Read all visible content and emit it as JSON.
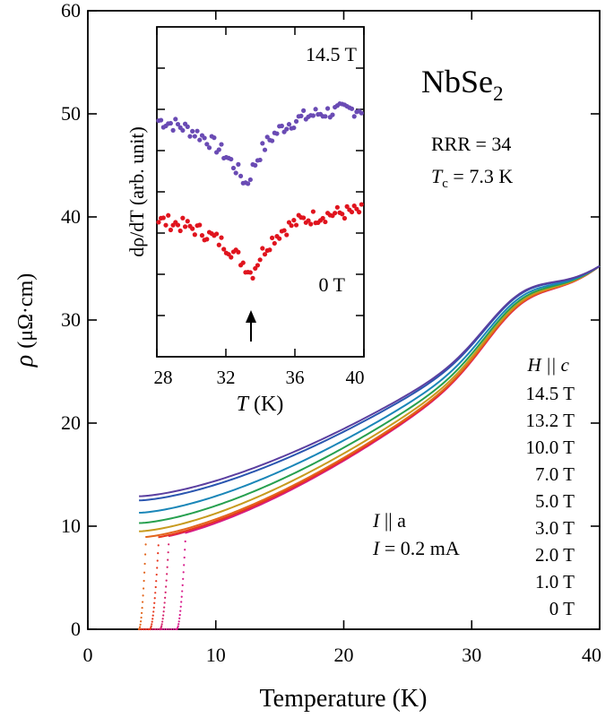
{
  "chart_data": [
    {
      "type": "line",
      "role": "main",
      "xlabel": "Temperature (K)",
      "ylabel_symbol": "ρ",
      "ylabel_unit": "(μΩ·cm)",
      "xlim": [
        0,
        40
      ],
      "ylim": [
        0,
        60
      ],
      "xticks": [
        0,
        10,
        20,
        30,
        40
      ],
      "yticks": [
        0,
        10,
        20,
        30,
        40,
        50,
        60
      ],
      "x_tick_labels": [
        "0",
        "10",
        "20",
        "30",
        "40"
      ],
      "y_tick_labels": [
        "0",
        "10",
        "20",
        "30",
        "40",
        "50",
        "60"
      ],
      "legend_title": "H || c",
      "legend_position": "right",
      "series": [
        {
          "name": "14.5 T",
          "color": "#5b3fa0",
          "tc": 0,
          "y0": 12.9
        },
        {
          "name": "13.2 T",
          "color": "#2a56b0",
          "tc": 0,
          "y0": 12.5
        },
        {
          "name": "10.0 T",
          "color": "#1a86b8",
          "tc": 0,
          "y0": 11.3
        },
        {
          "name": "7.0 T",
          "color": "#27a04f",
          "tc": 0,
          "y0": 10.3
        },
        {
          "name": "5.0 T",
          "color": "#c79a1e",
          "tc": 0,
          "y0": 9.5
        },
        {
          "name": "3.0 T",
          "color": "#e2651b",
          "tc": 4.2,
          "y0": 8.9
        },
        {
          "name": "2.0 T",
          "color": "#e8361c",
          "tc": 5.2,
          "y0": 8.7
        },
        {
          "name": "1.0 T",
          "color": "#d6226e",
          "tc": 6.0,
          "y0": 8.6
        },
        {
          "name": "0 T",
          "color": "#d81b8c",
          "tc": 7.3,
          "y0": 8.5
        }
      ]
    },
    {
      "type": "scatter",
      "role": "inset",
      "xlabel_symbol": "T",
      "xlabel_unit": "(K)",
      "ylabel": "dρ/dT (arb. unit)",
      "xlim": [
        28,
        40
      ],
      "ylim": [
        0,
        1
      ],
      "xticks": [
        28,
        32,
        36,
        40
      ],
      "x_tick_labels": [
        "28",
        "32",
        "36",
        "40"
      ],
      "annotation": "arrow at 33.5 K",
      "series": [
        {
          "name": "14.5 T",
          "color": "#6a4bb4",
          "base": 0.74,
          "dip": 0.22,
          "dip_at": 33.2
        },
        {
          "name": "0 T",
          "color": "#e0141e",
          "base": 0.43,
          "dip": 0.18,
          "dip_at": 33.5
        }
      ]
    }
  ],
  "text": {
    "material": "NbSe",
    "material_sub": "2",
    "rrr": "RRR = 34",
    "tc_symbol": "T",
    "tc_sub": "c",
    "tc_value": " = 7.3 K",
    "current_dir_symbol": "I",
    "current_dir_rest": " || a",
    "current_symbol": "I",
    "current_value": " = 0.2 mA",
    "inset_label_top": "14.5 T",
    "inset_label_bottom": "0 T"
  }
}
